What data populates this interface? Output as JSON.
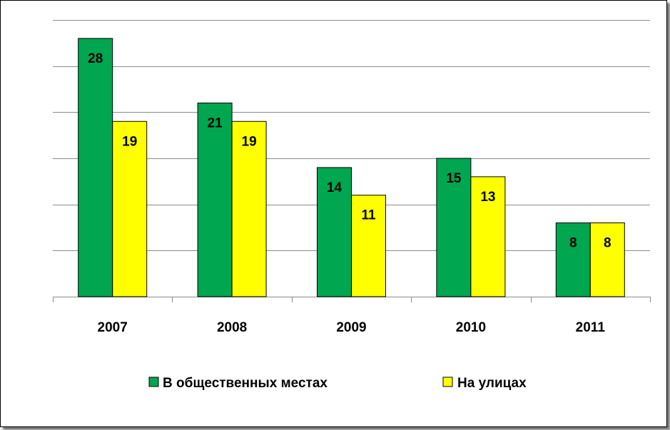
{
  "chart_data": {
    "type": "bar",
    "categories": [
      "2007",
      "2008",
      "2009",
      "2010",
      "2011"
    ],
    "series": [
      {
        "name": "В общественных местах",
        "values": [
          28,
          21,
          14,
          15,
          8
        ],
        "color": "#00A650"
      },
      {
        "name": "На улицах",
        "values": [
          19,
          19,
          11,
          13,
          8
        ],
        "color": "#FFFF00"
      }
    ],
    "ylim": [
      0,
      30
    ],
    "ytick_step": 5,
    "grid": true,
    "legend_position": "bottom",
    "title": "",
    "xlabel": "",
    "ylabel": ""
  }
}
